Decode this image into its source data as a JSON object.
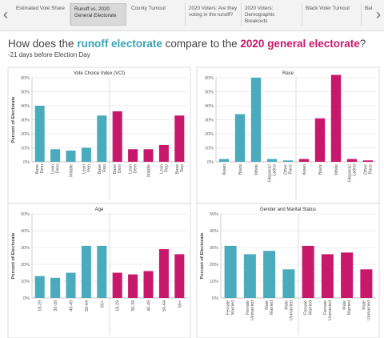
{
  "tabs": [
    {
      "label": "Estimated Vote Share",
      "active": false
    },
    {
      "label": "Runoff vs. 2020 General Electorate",
      "active": true
    },
    {
      "label": "County Turnout",
      "active": false
    },
    {
      "label": "2020 Voters: Are they voting in the runoff?",
      "active": false
    },
    {
      "label": "2020 Voters: Demographic Breakouts",
      "active": false
    },
    {
      "label": "Black Voter Turnout",
      "active": false
    },
    {
      "label": "Bal",
      "active": false
    }
  ],
  "headline": {
    "prefix": "How does the ",
    "highlight_a": "runoff electorate",
    "middle": " compare to the ",
    "highlight_b": "2020 general electorate",
    "suffix": "?"
  },
  "subline": "-21 days before Election Day",
  "colors": {
    "runoff": "#4aabbd",
    "general": "#c8186b",
    "grid": "#e6e6e6",
    "axis": "#bbbbbb"
  },
  "chart_data": [
    {
      "type": "bar",
      "title": "Vote Choice Index (VCI)",
      "ylabel": "Percent of Electorate",
      "ylim": [
        0,
        60
      ],
      "yticks": [
        "0%",
        "10%",
        "20%",
        "30%",
        "40%",
        "50%",
        "60%"
      ],
      "categories": [
        "Base Dem",
        "Lean Dem",
        "Middle",
        "Lean Rep",
        "Base Rep"
      ],
      "series": [
        {
          "values": [
            40,
            9,
            8,
            10,
            33
          ]
        },
        {
          "values": [
            36,
            9,
            9,
            12,
            33
          ]
        }
      ]
    },
    {
      "type": "bar",
      "title": "Race",
      "ylabel": "",
      "ylim": [
        0,
        60
      ],
      "yticks": [
        "0%",
        "10%",
        "20%",
        "30%",
        "40%",
        "50%",
        "60%"
      ],
      "categories": [
        "Asian",
        "Black",
        "White",
        "Hispanic/ Latino",
        "Other Race"
      ],
      "series": [
        {
          "values": [
            2,
            34,
            60,
            2,
            1
          ]
        },
        {
          "values": [
            2,
            31,
            62,
            2,
            1
          ]
        }
      ]
    },
    {
      "type": "bar",
      "title": "Age",
      "ylabel": "Percent of Electorate",
      "ylim": [
        0,
        50
      ],
      "yticks": [
        "0%",
        "10%",
        "20%",
        "30%",
        "40%",
        "50%"
      ],
      "categories": [
        "18-29",
        "30-39",
        "40-49",
        "50-64",
        "65+"
      ],
      "series": [
        {
          "values": [
            13,
            12,
            15,
            31,
            31
          ]
        },
        {
          "values": [
            15,
            14,
            16,
            29,
            26
          ]
        }
      ]
    },
    {
      "type": "bar",
      "title": "Gender and Marital Status",
      "ylabel": "Percent of Electorate",
      "ylim": [
        0,
        50
      ],
      "yticks": [
        "0%",
        "10%",
        "20%",
        "30%",
        "40%",
        "50%"
      ],
      "categories": [
        "Female Married",
        "Female Unmarried",
        "Male Married",
        "Male Unmarried"
      ],
      "series": [
        {
          "values": [
            31,
            26,
            28,
            17
          ]
        },
        {
          "values": [
            31,
            26,
            27,
            17
          ]
        }
      ]
    }
  ]
}
